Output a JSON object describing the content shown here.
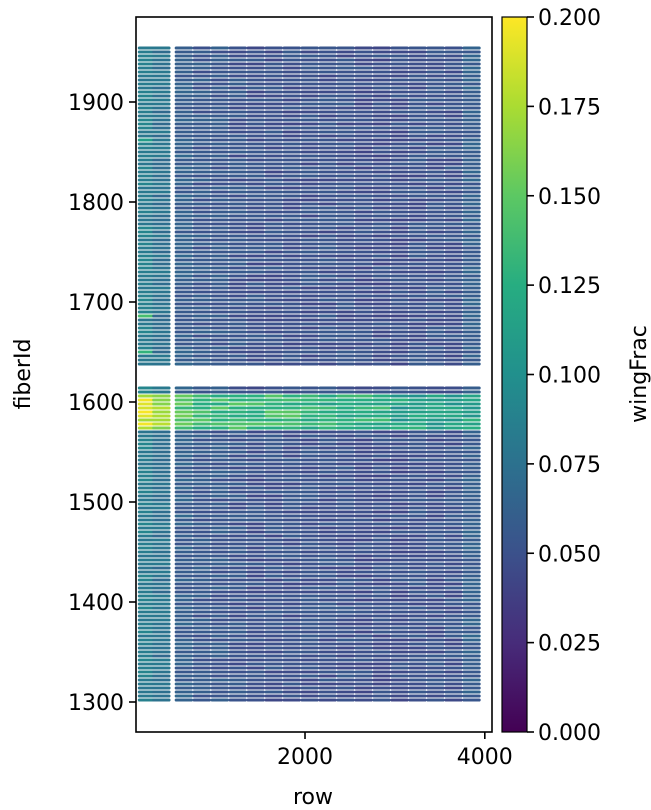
{
  "chart_data": {
    "type": "heatmap",
    "title": "",
    "xlabel": "row",
    "ylabel": "fiberId",
    "colorbar_label": "wingFrac",
    "colormap": "viridis",
    "xlim": [
      120,
      4080
    ],
    "ylim": [
      1270,
      1985
    ],
    "clim": [
      0.0,
      0.2
    ],
    "x_ticks": [
      {
        "value": 2000,
        "label": "2000"
      },
      {
        "value": 4000,
        "label": "4000"
      }
    ],
    "y_ticks": [
      {
        "value": 1300,
        "label": "1300"
      },
      {
        "value": 1400,
        "label": "1400"
      },
      {
        "value": 1500,
        "label": "1500"
      },
      {
        "value": 1600,
        "label": "1600"
      },
      {
        "value": 1700,
        "label": "1700"
      },
      {
        "value": 1800,
        "label": "1800"
      },
      {
        "value": 1900,
        "label": "1900"
      }
    ],
    "colorbar_ticks": [
      {
        "value": 0.0,
        "label": "0.000"
      },
      {
        "value": 0.025,
        "label": "0.025"
      },
      {
        "value": 0.05,
        "label": "0.050"
      },
      {
        "value": 0.075,
        "label": "0.075"
      },
      {
        "value": 0.1,
        "label": "0.100"
      },
      {
        "value": 0.125,
        "label": "0.125"
      },
      {
        "value": 0.15,
        "label": "0.150"
      },
      {
        "value": 0.175,
        "label": "0.175"
      },
      {
        "value": 0.2,
        "label": "0.200"
      }
    ],
    "row_columns": [
      240,
      400,
      650,
      850,
      1050,
      1250,
      1450,
      1650,
      1850,
      2050,
      2250,
      2450,
      2650,
      2850,
      3050,
      3250,
      3450,
      3650,
      3850
    ],
    "column_width": 200,
    "fiber_ranges": [
      [
        1302,
        1617
      ],
      [
        1638,
        1955
      ]
    ],
    "fiber_step": 4,
    "typical_values": [
      0.085,
      0.075,
      0.06,
      0.055,
      0.055,
      0.052,
      0.05,
      0.05,
      0.05,
      0.05,
      0.05,
      0.05,
      0.048,
      0.048,
      0.048,
      0.05,
      0.05,
      0.05,
      0.06
    ],
    "bright_band": {
      "fiber_min": 1574,
      "fiber_max": 1606,
      "values": [
        0.2,
        0.19,
        0.16,
        0.15,
        0.15,
        0.15,
        0.15,
        0.15,
        0.15,
        0.14,
        0.14,
        0.14,
        0.14,
        0.14,
        0.13,
        0.13,
        0.13,
        0.13,
        0.13
      ]
    },
    "highlight_rows": [
      {
        "fiber": 1686,
        "column": 0,
        "value": 0.14
      },
      {
        "fiber": 1650,
        "column": 0,
        "value": 0.13
      },
      {
        "fiber": 1862,
        "column": 0,
        "value": 0.11
      },
      {
        "fiber": 1700,
        "column": 0,
        "value": 0.11
      }
    ]
  }
}
